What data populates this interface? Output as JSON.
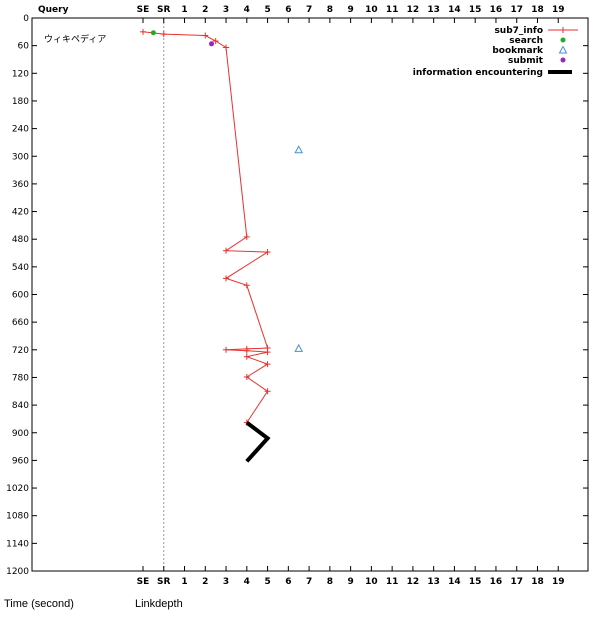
{
  "header": {
    "query_label": "Query"
  },
  "query_text": "ウィキペディア",
  "captions": {
    "left": "Time (second)",
    "right": "Linkdepth"
  },
  "chart_data": {
    "type": "line",
    "y_axis": {
      "label": "Time (second)",
      "ylim": [
        0,
        1200
      ],
      "ticks": [
        0,
        60,
        120,
        180,
        240,
        300,
        360,
        420,
        480,
        540,
        600,
        660,
        720,
        780,
        840,
        900,
        960,
        1020,
        1080,
        1140,
        1200
      ],
      "inverted": true
    },
    "x_axis": {
      "label": "Linkdepth",
      "tick_labels": [
        "SE",
        "SR",
        "1",
        "2",
        "3",
        "4",
        "5",
        "6",
        "7",
        "8",
        "9",
        "10",
        "11",
        "12",
        "13",
        "14",
        "15",
        "16",
        "17",
        "18",
        "19"
      ],
      "xlim": [
        -2,
        19
      ]
    },
    "grid": false,
    "sr_divider_x": -1,
    "legend_position": "top-right",
    "colors": {
      "sub7_info": "#e8312f",
      "search": "#22aa22",
      "bookmark": "#4a8fd6",
      "submit": "#a020c0",
      "information_encountering": "#000000"
    },
    "series": [
      {
        "name": "sub7_info",
        "style": "line-plus",
        "points": [
          [
            -2,
            30
          ],
          [
            -1,
            35
          ],
          [
            1,
            38
          ],
          [
            1.5,
            50
          ],
          [
            2,
            64
          ],
          [
            3,
            475
          ],
          [
            2,
            505
          ],
          [
            4,
            508
          ],
          [
            2,
            565
          ],
          [
            3,
            580
          ],
          [
            4,
            716
          ],
          [
            3,
            718
          ],
          [
            2,
            720
          ],
          [
            3,
            722
          ],
          [
            4,
            725
          ],
          [
            3,
            735
          ],
          [
            4,
            751
          ],
          [
            3,
            779
          ],
          [
            4,
            810
          ],
          [
            3,
            878
          ]
        ]
      },
      {
        "name": "search",
        "style": "dot",
        "points": [
          [
            -1.5,
            32
          ]
        ]
      },
      {
        "name": "bookmark",
        "style": "triangle",
        "points": [
          [
            5.5,
            286
          ],
          [
            5.5,
            717
          ]
        ]
      },
      {
        "name": "submit",
        "style": "dot",
        "points": [
          [
            1.3,
            56
          ]
        ]
      },
      {
        "name": "information encountering",
        "style": "thick-line",
        "points": [
          [
            3,
            878
          ],
          [
            4,
            912
          ],
          [
            3,
            962
          ]
        ]
      }
    ]
  }
}
